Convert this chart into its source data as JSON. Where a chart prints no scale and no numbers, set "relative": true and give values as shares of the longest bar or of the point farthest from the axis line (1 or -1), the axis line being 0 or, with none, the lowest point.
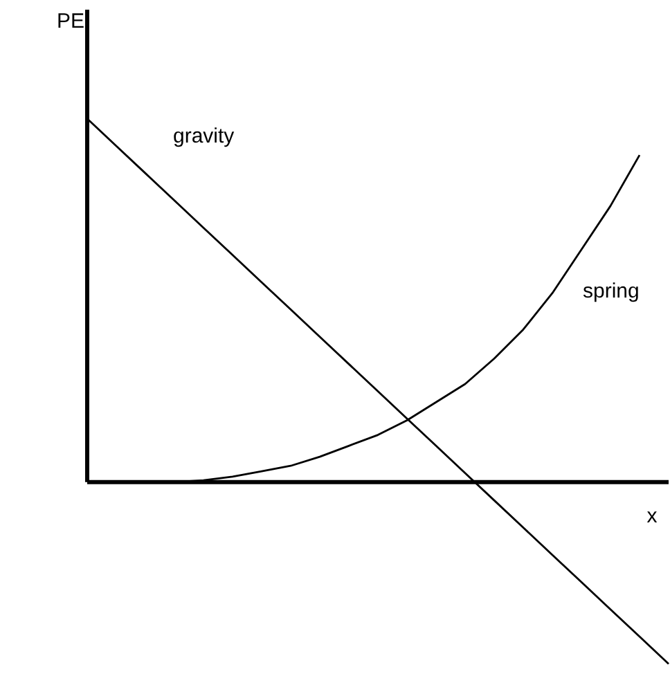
{
  "chart_data": {
    "type": "line",
    "relative": true,
    "xlabel": "x",
    "ylabel": "PE",
    "legend": false,
    "categories": [
      null,
      null,
      null,
      null,
      null,
      null,
      null,
      null,
      null,
      null,
      null,
      null,
      null,
      null,
      null,
      null,
      null,
      null,
      null,
      null,
      null
    ],
    "series": [
      {
        "name": "gravity",
        "color": "#000000",
        "values": [
          1,
          0.925,
          0.85,
          0.775,
          0.7,
          0.625,
          0.55,
          0.475,
          0.4,
          0.325,
          0.25,
          0.175,
          0.1,
          0.025,
          -0.05,
          -0.125,
          -0.2,
          -0.275,
          -0.35,
          -0.425,
          -0.5
        ]
      },
      {
        "name": "spring",
        "color": "#000000",
        "values": [
          null,
          null,
          null,
          0,
          0.005,
          0.015,
          0.03,
          0.045,
          0.07,
          0.1,
          0.13,
          0.17,
          0.22,
          0.27,
          0.34,
          0.42,
          0.52,
          0.64,
          0.76,
          0.9,
          null
        ]
      }
    ]
  }
}
